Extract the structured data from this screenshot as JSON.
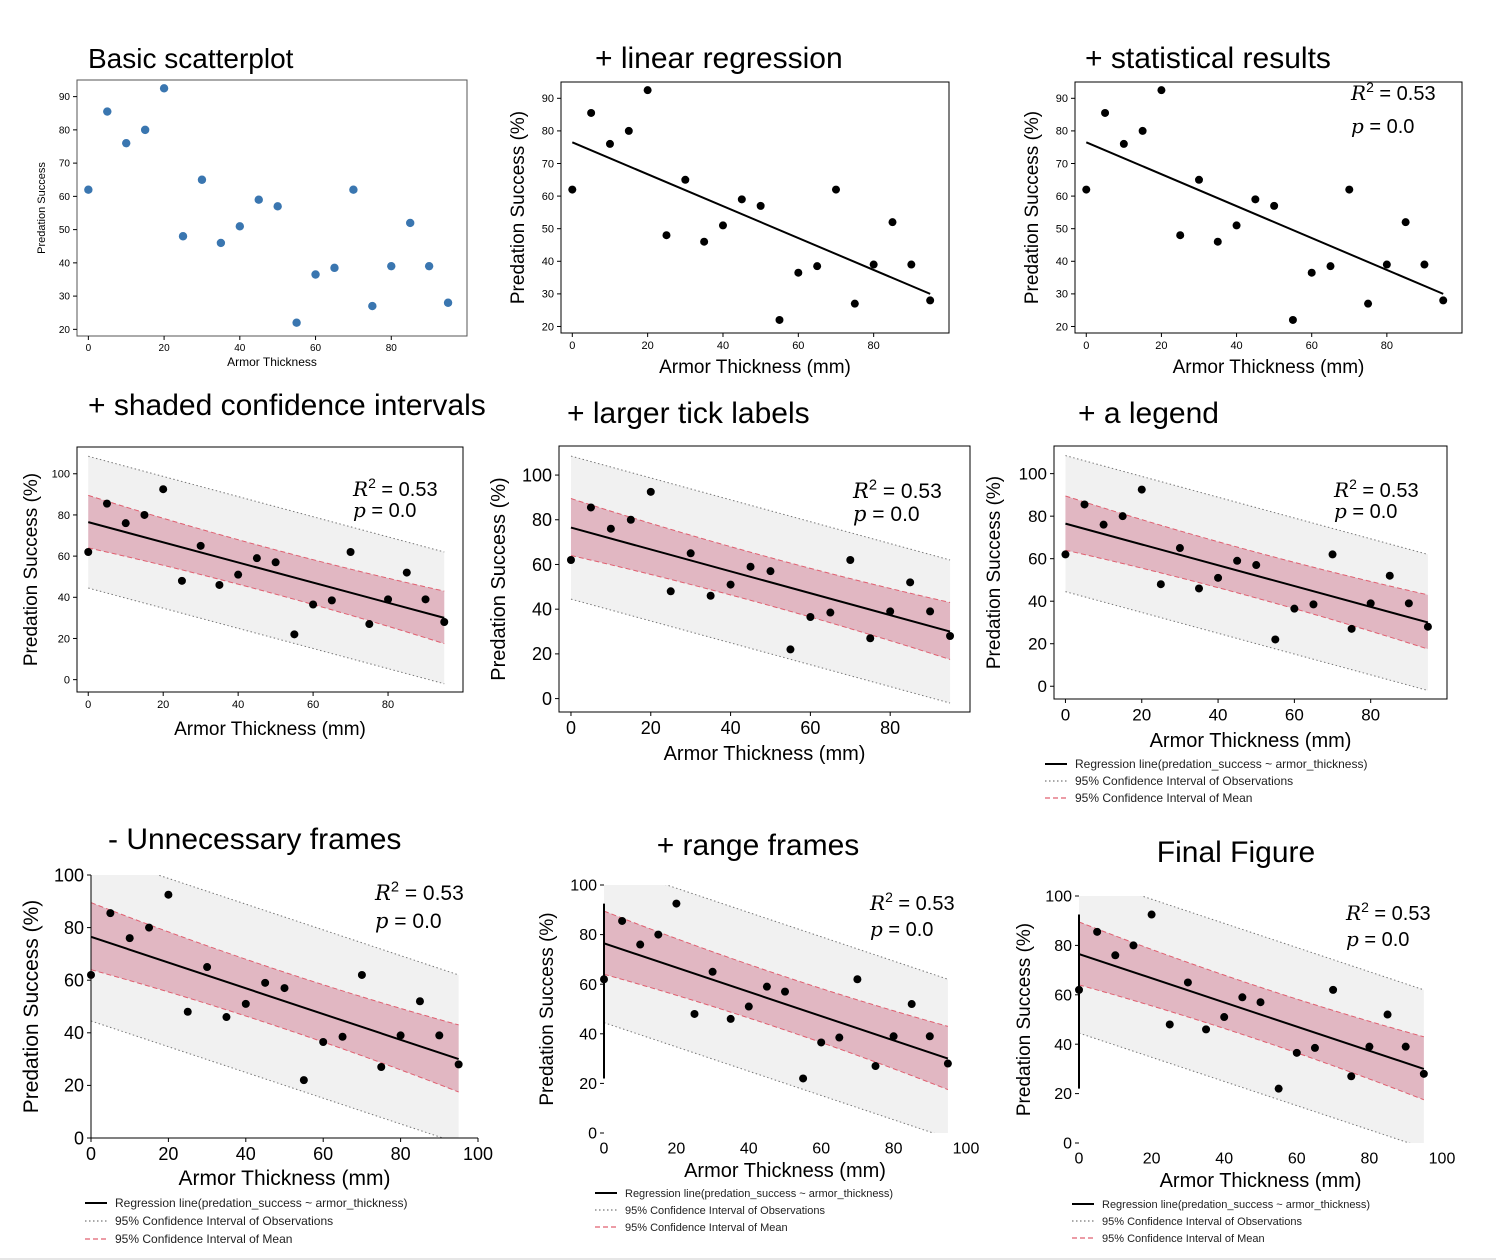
{
  "colors": {
    "point_basic": "#3a76b0",
    "point": "#000000",
    "line": "#000000",
    "mean_fill": "#dba3b2",
    "mean_edge": "#e06070",
    "obs_fill": "#f1f1f1",
    "obs_edge": "#777777"
  },
  "dataset": {
    "x": [
      0,
      5,
      10,
      15,
      20,
      25,
      30,
      35,
      40,
      45,
      50,
      55,
      60,
      65,
      70,
      75,
      80,
      85,
      90,
      95
    ],
    "y": [
      62,
      85.5,
      76,
      80,
      92.5,
      48,
      65,
      46,
      51,
      59,
      57,
      22,
      36.5,
      38.5,
      62,
      27,
      39,
      52,
      39,
      28
    ],
    "regression": {
      "intercept": 76.5,
      "slope": -0.4895
    },
    "mean_ci": {
      "upper_left": 89.5,
      "upper_right": 43,
      "lower_left": 64,
      "lower_right": 17.5
    },
    "obs_ci": {
      "upper_left": 108.5,
      "upper_right": 62,
      "lower_left": 44.5,
      "lower_right": -2
    }
  },
  "stats": {
    "r2": "= 0.53",
    "p": "= 0.0",
    "r_letter": "R",
    "r_exp": "2",
    "p_letter": "p"
  },
  "legend": {
    "regression": "Regression line(predation_success ~ armor_thickness)",
    "obs": "95% Confidence Interval of Observations",
    "mean": "95% Confidence Interval of Mean"
  },
  "chart_data": [
    {
      "type": "scatter",
      "title": "Basic scatterplot",
      "xlabel": "Armor Thickness",
      "ylabel": "Predation Success",
      "xlim": [
        -3,
        100
      ],
      "ylim": [
        18,
        95
      ],
      "xticks": [
        "0",
        "20",
        "40",
        "60",
        "80"
      ],
      "yticks": [
        "20",
        "30",
        "40",
        "50",
        "60",
        "70",
        "80",
        "90"
      ]
    },
    {
      "type": "scatter",
      "title": "+ linear regression",
      "xlabel": "Armor Thickness (mm)",
      "ylabel": "Predation Success (%)",
      "xlim": [
        -3,
        100
      ],
      "ylim": [
        18,
        95
      ],
      "xticks": [
        "0",
        "20",
        "40",
        "60",
        "80"
      ],
      "yticks": [
        "20",
        "30",
        "40",
        "50",
        "60",
        "70",
        "80",
        "90"
      ]
    },
    {
      "type": "scatter",
      "title": "+ statistical results",
      "xlabel": "Armor Thickness (mm)",
      "ylabel": "Predation Success (%)",
      "xlim": [
        -3,
        100
      ],
      "ylim": [
        18,
        95
      ],
      "xticks": [
        "0",
        "20",
        "40",
        "60",
        "80"
      ],
      "yticks": [
        "20",
        "30",
        "40",
        "50",
        "60",
        "70",
        "80",
        "90"
      ]
    },
    {
      "type": "scatter",
      "title": "+ shaded confidence intervals",
      "xlabel": "Armor Thickness (mm)",
      "ylabel": "Predation Success (%)",
      "xlim": [
        -3,
        100
      ],
      "ylim": [
        -6,
        113
      ],
      "xticks": [
        "0",
        "20",
        "40",
        "60",
        "80"
      ],
      "yticks": [
        "0",
        "20",
        "40",
        "60",
        "80",
        "100"
      ]
    },
    {
      "type": "scatter",
      "title": "+ larger tick labels",
      "xlabel": "Armor Thickness (mm)",
      "ylabel": "Predation Success (%)",
      "xlim": [
        -3,
        100
      ],
      "ylim": [
        -6,
        113
      ],
      "xticks": [
        "0",
        "20",
        "40",
        "60",
        "80"
      ],
      "yticks": [
        "0",
        "20",
        "40",
        "60",
        "80",
        "100"
      ]
    },
    {
      "type": "scatter",
      "title": "+ a legend",
      "xlabel": "Armor Thickness (mm)",
      "ylabel": "Predation Success (%)",
      "xlim": [
        -3,
        100
      ],
      "ylim": [
        -6,
        113
      ],
      "xticks": [
        "0",
        "20",
        "40",
        "60",
        "80"
      ],
      "yticks": [
        "0",
        "20",
        "40",
        "60",
        "80",
        "100"
      ]
    },
    {
      "type": "scatter",
      "title": "- Unnecessary frames",
      "xlabel": "Armor Thickness (mm)",
      "ylabel": "Predation Success (%)",
      "xlim": [
        0,
        100
      ],
      "ylim": [
        0,
        100
      ],
      "xticks": [
        "0",
        "20",
        "40",
        "60",
        "80",
        "100"
      ],
      "yticks": [
        "0",
        "20",
        "40",
        "60",
        "80",
        "100"
      ]
    },
    {
      "type": "scatter",
      "title": "+ range frames",
      "xlabel": "Armor Thickness (mm)",
      "ylabel": "Predation Success (%)",
      "xlim": [
        0,
        100
      ],
      "ylim": [
        0,
        100
      ],
      "xticks": [
        "0",
        "20",
        "40",
        "60",
        "80",
        "100"
      ],
      "yticks": [
        "0",
        "20",
        "40",
        "60",
        "80",
        "100"
      ]
    },
    {
      "type": "scatter",
      "title": "Final Figure",
      "xlabel": "Armor Thickness (mm)",
      "ylabel": "Predation Success (%)",
      "xlim": [
        0,
        100
      ],
      "ylim": [
        0,
        100
      ],
      "xticks": [
        "0",
        "20",
        "40",
        "60",
        "80",
        "100"
      ],
      "yticks": [
        "0",
        "20",
        "40",
        "60",
        "80",
        "100"
      ]
    }
  ]
}
